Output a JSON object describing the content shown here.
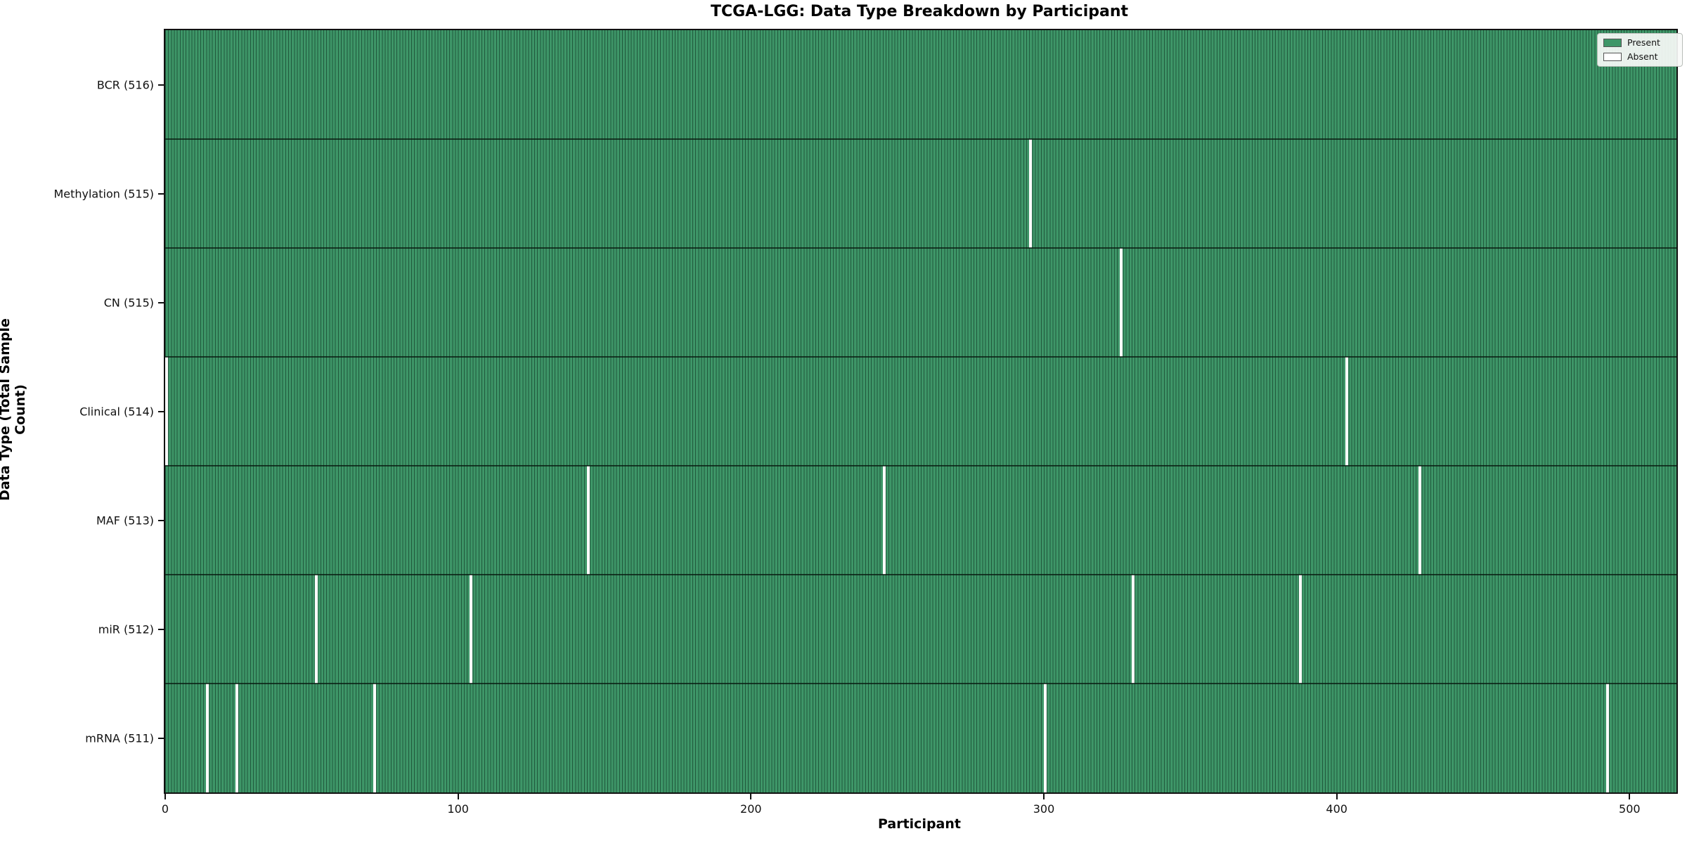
{
  "chart_data": {
    "type": "heatmap",
    "title": "TCGA-LGG: Data Type Breakdown by Participant",
    "xlabel": "Participant",
    "ylabel": "Data Type (Total Sample Count)",
    "x_ticks": [
      0,
      100,
      200,
      300,
      400,
      500
    ],
    "x_range": [
      0,
      516
    ],
    "n_participants": 516,
    "grid": false,
    "legend_position": "upper right",
    "legend": [
      {
        "label": "Present",
        "color": "#3E9668"
      },
      {
        "label": "Absent",
        "color": "#FFFFFF"
      }
    ],
    "colors": {
      "present_fill": "#3E9668",
      "cell_edge": "rgba(8,38,23,0.55)",
      "absent_fill": "#FCFCFC"
    },
    "rows": [
      {
        "label": "BCR (516)",
        "total": 516,
        "absent_participants": []
      },
      {
        "label": "Methylation (515)",
        "total": 515,
        "absent_participants": [
          295
        ]
      },
      {
        "label": "CN (515)",
        "total": 515,
        "absent_participants": [
          326
        ]
      },
      {
        "label": "Clinical (514)",
        "total": 514,
        "absent_participants": [
          0,
          403
        ]
      },
      {
        "label": "MAF (513)",
        "total": 513,
        "absent_participants": [
          144,
          245,
          428
        ]
      },
      {
        "label": "miR (512)",
        "total": 512,
        "absent_participants": [
          51,
          104,
          330,
          387
        ]
      },
      {
        "label": "mRNA (511)",
        "total": 511,
        "absent_participants": [
          14,
          24,
          71,
          300,
          492
        ]
      }
    ]
  }
}
